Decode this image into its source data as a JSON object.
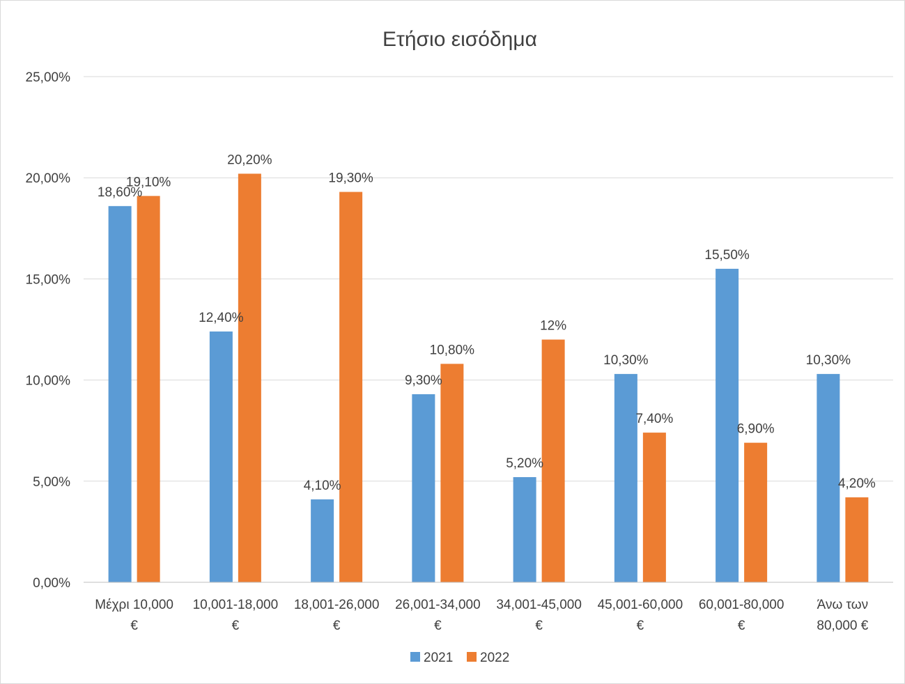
{
  "chart_data": {
    "type": "bar",
    "title": "Ετήσιο εισόδημα",
    "categories": [
      [
        "Μέχρι 10,000",
        "€"
      ],
      [
        "10,001-18,000",
        "€"
      ],
      [
        "18,001-26,000",
        "€"
      ],
      [
        "26,001-34,000",
        "€"
      ],
      [
        "34,001-45,000",
        "€"
      ],
      [
        "45,001-60,000",
        "€"
      ],
      [
        "60,001-80,000",
        "€"
      ],
      [
        "Άνω των",
        "80,000 €"
      ]
    ],
    "series": [
      {
        "name": "2021",
        "color": "#5b9bd5",
        "values": [
          18.6,
          12.4,
          4.1,
          9.3,
          5.2,
          10.3,
          15.5,
          10.3
        ],
        "labels": [
          "18,60%",
          "12,40%",
          "4,10%",
          "9,30%",
          "5,20%",
          "10,30%",
          "15,50%",
          "10,30%"
        ]
      },
      {
        "name": "2022",
        "color": "#ed7d31",
        "values": [
          19.1,
          20.2,
          19.3,
          10.8,
          12.0,
          7.4,
          6.9,
          4.2
        ],
        "labels": [
          "19,10%",
          "20,20%",
          "19,30%",
          "10,80%",
          "12%",
          "7,40%",
          "6,90%",
          "4,20%"
        ]
      }
    ],
    "yticks": [
      "0,00%",
      "5,00%",
      "10,00%",
      "15,00%",
      "20,00%",
      "25,00%"
    ],
    "ylim": [
      0,
      25
    ],
    "grid": true,
    "legend": "bottom",
    "xlabel": "",
    "ylabel": ""
  }
}
